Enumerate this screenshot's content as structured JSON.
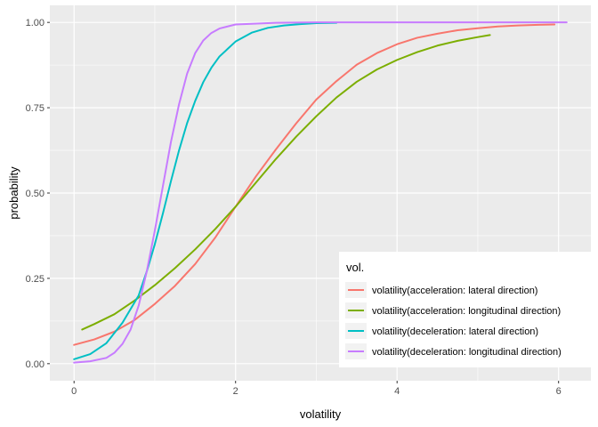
{
  "chart_data": {
    "type": "line",
    "title": "",
    "xlabel": "volatility",
    "ylabel": "probability",
    "xlim": [
      -0.3,
      6.4
    ],
    "ylim": [
      -0.05,
      1.05
    ],
    "x_ticks": [
      0,
      2,
      4,
      6
    ],
    "x_tick_labels": [
      "0",
      "2",
      "4",
      "6"
    ],
    "y_ticks": [
      0,
      0.25,
      0.5,
      0.75,
      1
    ],
    "y_tick_labels": [
      "0.00",
      "0.25",
      "0.50",
      "0.75",
      "1.00"
    ],
    "grid": true,
    "legend_title": "vol.",
    "legend_position": "bottom-right",
    "colors": {
      "panel_bg": "#EBEBEB",
      "grid_major": "#FFFFFF",
      "text": "#4D4D4D"
    },
    "series": [
      {
        "name": "volatility(acceleration: lateral direction)",
        "color": "#F8766D",
        "x": [
          0.0,
          0.25,
          0.5,
          0.75,
          1.0,
          1.25,
          1.5,
          1.75,
          2.0,
          2.25,
          2.5,
          2.75,
          3.0,
          3.25,
          3.5,
          3.75,
          4.0,
          4.25,
          4.5,
          4.75,
          5.0,
          5.25,
          5.5,
          5.75,
          5.95
        ],
        "y": [
          0.055,
          0.071,
          0.094,
          0.128,
          0.175,
          0.228,
          0.292,
          0.37,
          0.46,
          0.548,
          0.628,
          0.704,
          0.774,
          0.828,
          0.876,
          0.91,
          0.936,
          0.955,
          0.967,
          0.977,
          0.983,
          0.988,
          0.991,
          0.993,
          0.994
        ]
      },
      {
        "name": "volatility(acceleration: longitudinal direction)",
        "color": "#7CAE00",
        "x": [
          0.1,
          0.25,
          0.5,
          0.75,
          1.0,
          1.25,
          1.5,
          1.75,
          2.0,
          2.25,
          2.5,
          2.75,
          3.0,
          3.25,
          3.5,
          3.75,
          4.0,
          4.25,
          4.5,
          4.75,
          5.0,
          5.15
        ],
        "y": [
          0.1,
          0.116,
          0.145,
          0.185,
          0.23,
          0.28,
          0.335,
          0.395,
          0.46,
          0.53,
          0.6,
          0.665,
          0.725,
          0.78,
          0.826,
          0.862,
          0.89,
          0.913,
          0.932,
          0.946,
          0.957,
          0.963
        ]
      },
      {
        "name": "volatility(deceleration: lateral direction)",
        "color": "#00BFC4",
        "x": [
          0.0,
          0.2,
          0.4,
          0.6,
          0.8,
          0.9,
          1.0,
          1.1,
          1.2,
          1.3,
          1.4,
          1.5,
          1.6,
          1.7,
          1.8,
          2.0,
          2.2,
          2.4,
          2.6,
          2.8,
          3.0,
          3.25
        ],
        "y": [
          0.013,
          0.028,
          0.06,
          0.12,
          0.2,
          0.27,
          0.35,
          0.44,
          0.535,
          0.625,
          0.705,
          0.77,
          0.825,
          0.867,
          0.9,
          0.944,
          0.97,
          0.984,
          0.991,
          0.995,
          0.998,
          0.999
        ]
      },
      {
        "name": "volatility(deceleration: longitudinal direction)",
        "color": "#C77CFF",
        "x": [
          0.0,
          0.2,
          0.4,
          0.5,
          0.6,
          0.7,
          0.8,
          0.9,
          1.0,
          1.1,
          1.2,
          1.3,
          1.4,
          1.5,
          1.6,
          1.7,
          1.8,
          2.0,
          2.5,
          3.0,
          4.0,
          5.0,
          6.1
        ],
        "y": [
          0.003,
          0.007,
          0.017,
          0.032,
          0.058,
          0.1,
          0.17,
          0.27,
          0.39,
          0.52,
          0.65,
          0.76,
          0.85,
          0.91,
          0.947,
          0.969,
          0.982,
          0.994,
          0.999,
          1.0,
          1.0,
          1.0,
          1.0
        ]
      }
    ]
  }
}
